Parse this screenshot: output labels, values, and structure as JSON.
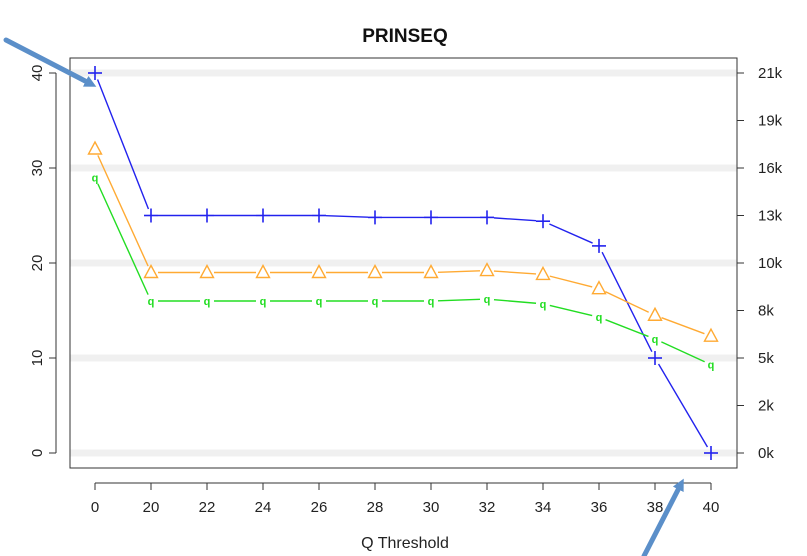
{
  "chart_data": {
    "type": "line",
    "title": "PRINSEQ",
    "xlabel": "Q Threshold",
    "ylabel": "",
    "categories": [
      "0",
      "20",
      "22",
      "24",
      "26",
      "28",
      "30",
      "32",
      "34",
      "36",
      "38",
      "40"
    ],
    "ylim": [
      0,
      40
    ],
    "y_ticks": [
      "0",
      "10",
      "20",
      "30",
      "40"
    ],
    "y2_ticks": [
      "0k",
      "2k",
      "5k",
      "8k",
      "10k",
      "13k",
      "16k",
      "19k",
      "21k"
    ],
    "grid": true,
    "series": [
      {
        "color": "#2222ee",
        "marker": "+",
        "values": [
          40,
          25,
          25,
          25,
          25,
          24.8,
          24.8,
          24.8,
          24.4,
          21.8,
          10,
          0
        ]
      },
      {
        "color": "#ffaa33",
        "marker": "triangle",
        "values": [
          32,
          19,
          19,
          19,
          19,
          19,
          19,
          19.2,
          18.8,
          17.3,
          14.5,
          12.3
        ]
      },
      {
        "color": "#22dd22",
        "marker": "q",
        "values": [
          29,
          16,
          16,
          16,
          16,
          16,
          16,
          16.2,
          15.7,
          14.3,
          12,
          9.3
        ]
      }
    ],
    "annotations": [
      {
        "type": "arrow",
        "color": "#5b8fc9",
        "points_to": "blue-series-x-0"
      },
      {
        "type": "arrow",
        "color": "#5b8fc9",
        "points_to": "blue-series-x-40"
      }
    ]
  }
}
